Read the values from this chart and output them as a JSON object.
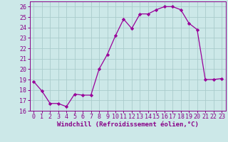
{
  "x": [
    0,
    1,
    2,
    3,
    4,
    5,
    6,
    7,
    8,
    9,
    10,
    11,
    12,
    13,
    14,
    15,
    16,
    17,
    18,
    19,
    20,
    21,
    22,
    23
  ],
  "y": [
    18.8,
    17.9,
    16.7,
    16.7,
    16.4,
    17.6,
    17.5,
    17.5,
    20.0,
    21.4,
    23.2,
    24.8,
    23.9,
    25.3,
    25.3,
    25.7,
    26.0,
    26.0,
    25.7,
    24.4,
    23.8,
    19.0,
    19.0,
    19.1
  ],
  "line_color": "#990099",
  "marker": "D",
  "marker_size": 2.2,
  "xlim": [
    -0.5,
    23.5
  ],
  "ylim": [
    16,
    26.5
  ],
  "yticks": [
    16,
    17,
    18,
    19,
    20,
    21,
    22,
    23,
    24,
    25,
    26
  ],
  "xticks": [
    0,
    1,
    2,
    3,
    4,
    5,
    6,
    7,
    8,
    9,
    10,
    11,
    12,
    13,
    14,
    15,
    16,
    17,
    18,
    19,
    20,
    21,
    22,
    23
  ],
  "xlabel": "Windchill (Refroidissement éolien,°C)",
  "bg_color": "#cce8e8",
  "grid_color": "#aacccc",
  "tick_color": "#880088",
  "label_color": "#880088",
  "font_size_xlabel": 6.5,
  "font_size_ticks": 6.0
}
